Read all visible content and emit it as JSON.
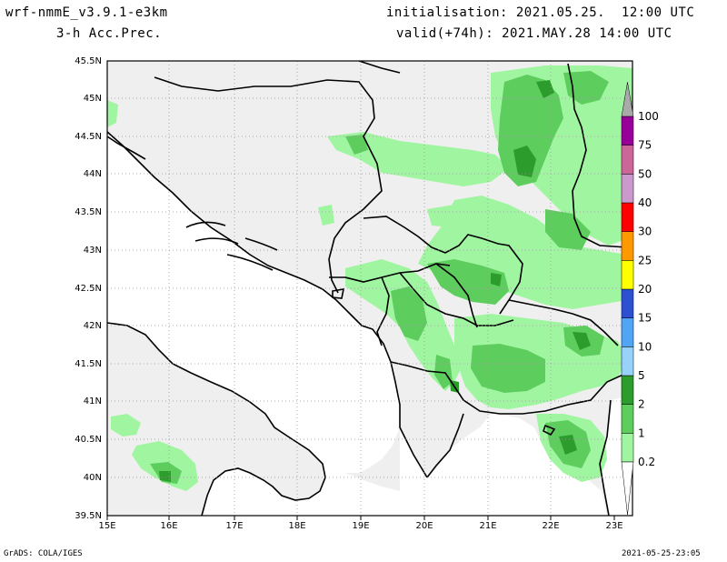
{
  "header": {
    "model": "wrf-nmmE_v3.9.1-e3km",
    "field": "3-h Acc.Prec.",
    "init": "initialisation: 2021.05.25.  12:00 UTC",
    "valid": "valid(+74h): 2021.MAY.28 14:00 UTC"
  },
  "footer": {
    "credit": "GrADS: COLA/IGES",
    "timestamp": "2021-05-25-23:05"
  },
  "map": {
    "lon_labels": [
      "15E",
      "16E",
      "17E",
      "18E",
      "19E",
      "20E",
      "21E",
      "22E",
      "23E"
    ],
    "lat_labels": [
      "45.5N",
      "45N",
      "44.5N",
      "44N",
      "43.5N",
      "43N",
      "42.5N",
      "42N",
      "41.5N",
      "41N",
      "40.5N",
      "40N",
      "39.5N"
    ],
    "land_color": "#efefef",
    "sea_color": "#ffffff"
  },
  "colorbar": {
    "levels": [
      "0.2",
      "1",
      "2",
      "5",
      "10",
      "15",
      "20",
      "25",
      "30",
      "40",
      "50",
      "75",
      "100"
    ],
    "colors": [
      "#a0f5a0",
      "#5dcd5d",
      "#2c9c2c",
      "#96d2fa",
      "#50a5f5",
      "#2d50d2",
      "#ffff00",
      "#ff9900",
      "#ff0000",
      "#cc99cc",
      "#cc6699",
      "#990099",
      "#aaaaaa"
    ]
  },
  "precip_colors": {
    "light": "#a0f5a0",
    "medium": "#5dcd5d",
    "heavy": "#2c9c2c"
  }
}
